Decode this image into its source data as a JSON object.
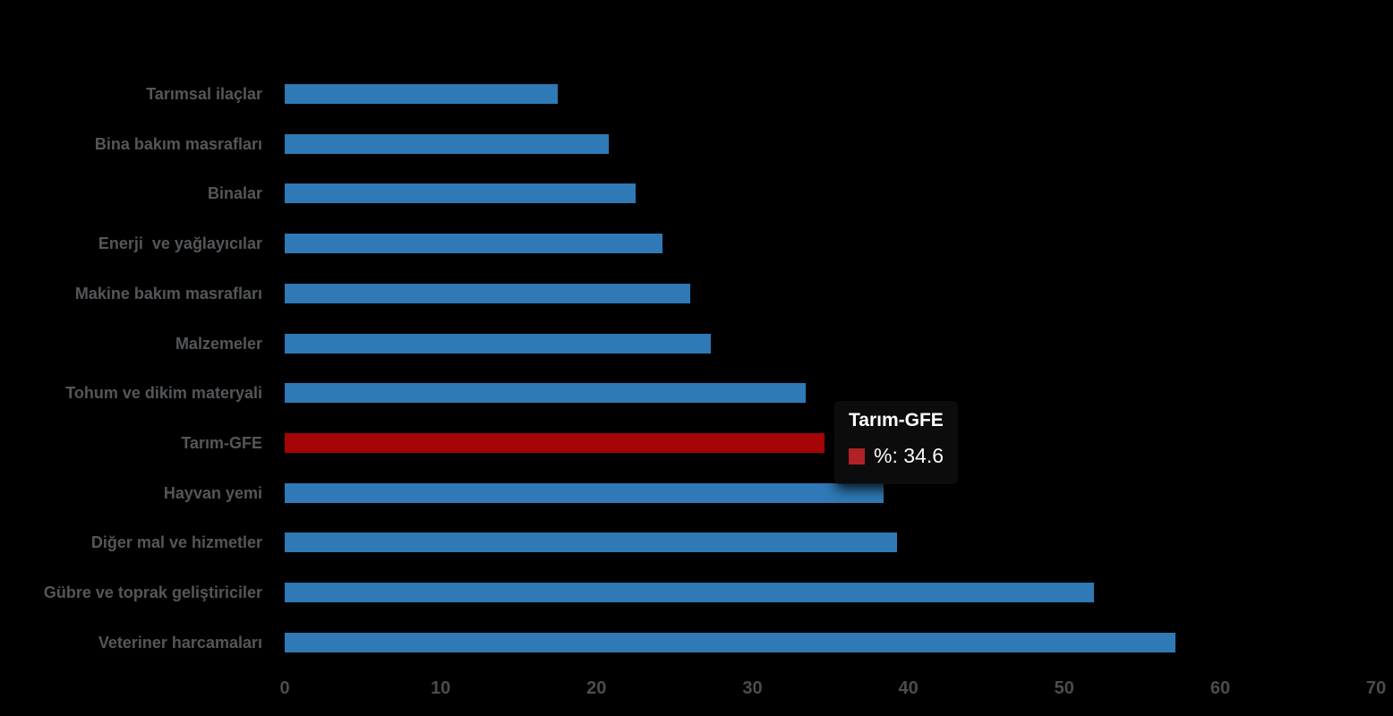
{
  "chart_data": {
    "type": "bar",
    "orientation": "horizontal",
    "title": "",
    "xlabel": "",
    "ylabel": "",
    "grid": false,
    "legend": false,
    "background": "#000000",
    "categories": [
      "Tarımsal ilaçlar",
      "Bina bakım masrafları",
      "Binalar",
      "Enerji  ve yağlayıcılar",
      "Makine bakım masrafları",
      "Malzemeler",
      "Tohum ve dikim materyali",
      "Tarım-GFE",
      "Hayvan yemi",
      "Diğer mal ve hizmetler",
      "Gübre ve toprak geliştiriciler",
      "Veteriner harcamaları"
    ],
    "values": [
      17.5,
      20.8,
      22.5,
      24.2,
      26.0,
      27.3,
      33.4,
      34.6,
      38.4,
      39.3,
      51.9,
      57.1
    ],
    "series_label": "%",
    "highlight_index": 7,
    "highlight_category": "Tarım-GFE",
    "highlight_value": 34.6,
    "xlim": [
      0,
      70
    ],
    "x_ticks": [
      0,
      10,
      20,
      30,
      40,
      50,
      60,
      70
    ],
    "bar_color": "#2E79B6",
    "highlight_color": "#A50408",
    "label_color": "#54575A",
    "tick_color": "#4C4C4C"
  },
  "tooltip": {
    "title": "Tarım-GFE",
    "text": "%: 34.6",
    "swatch_color": "#B12227",
    "text_color": "#FFFFFF"
  }
}
